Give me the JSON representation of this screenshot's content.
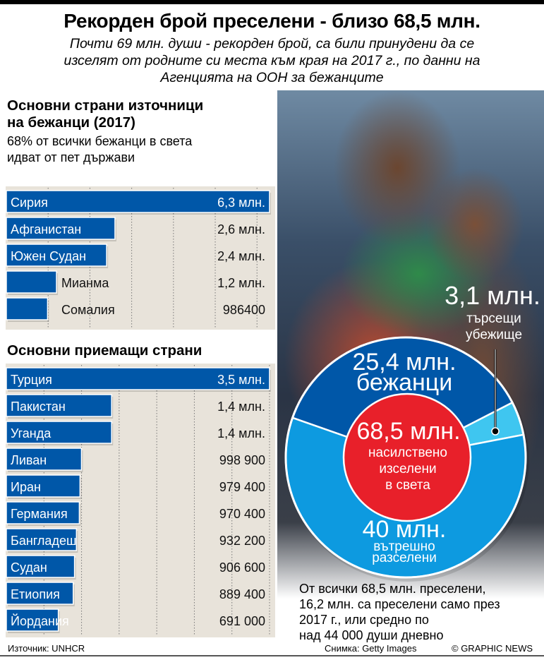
{
  "header": {
    "title": "Рекорден брой преселени - близо 68,5 млн.",
    "subtitle_lines": [
      "Почти 69 млн. души - рекорден брой, са били принудени да се",
      "изселят от родните си места към края на 2017 г., по данни на",
      "Агенцията на ООН за бежанците"
    ]
  },
  "colors": {
    "bar": "#0057a8",
    "panel": "#e8e3da",
    "refugees": "#0057a8",
    "idp": "#0d9ae0",
    "asylum": "#3fc6f0",
    "center": "#e8202a"
  },
  "chart_data": [
    {
      "type": "bar",
      "orientation": "horizontal",
      "title_lines": [
        "Основни страни източници",
        "на бежанци (2017)"
      ],
      "subtitle_lines": [
        "68% от всички бежанци в света",
        "идват от пет държави"
      ],
      "categories": [
        "Сирия",
        "Афганистан",
        "Южен Судан",
        "Мианма",
        "Сомалия"
      ],
      "values": [
        6300000,
        2600000,
        2400000,
        1200000,
        986400
      ],
      "value_labels": [
        "6,3 млн.",
        "2,6 млн.",
        "2,4 млн.",
        "1,2 млн.",
        "986400"
      ],
      "xlim": [
        0,
        6300000
      ],
      "grid": true
    },
    {
      "type": "bar",
      "orientation": "horizontal",
      "title": "Основни приемащи страни",
      "categories": [
        "Турция",
        "Пакистан",
        "Уганда",
        "Ливан",
        "Иран",
        "Германия",
        "Бангладеш",
        "Судан",
        "Етиопия",
        "Йордания"
      ],
      "values": [
        3500000,
        1400000,
        1400000,
        998900,
        979400,
        970400,
        932200,
        906600,
        889400,
        691000
      ],
      "value_labels": [
        "3,5 млн.",
        "1,4 млн.",
        "1,4 млн.",
        "998 900",
        "979 400",
        "970 400",
        "932 200",
        "906 600",
        "889 400",
        "691 000"
      ],
      "xlim": [
        0,
        3500000
      ],
      "grid": true
    },
    {
      "type": "pie",
      "center_label": {
        "value": "68,5 млн.",
        "lines": [
          "насилствено",
          "изселени",
          "в света"
        ]
      },
      "slices": [
        {
          "value": 25.4,
          "label_value": "25,4 млн.",
          "label": "бежанци",
          "color": "#0057a8"
        },
        {
          "value": 3.1,
          "label_value": "3,1 млн.",
          "label_lines": [
            "търсещи",
            "убежище"
          ],
          "color": "#3fc6f0"
        },
        {
          "value": 40,
          "label_value": "40 млн.",
          "label_lines": [
            "вътрешно",
            "разселени"
          ],
          "color": "#0d9ae0"
        }
      ]
    }
  ],
  "note_lines": [
    "От всички 68,5 млн. преселени,",
    "16,2 млн. са преселени само през",
    "2017 г., или средно по",
    "над 44 000 души дневно"
  ],
  "footer": {
    "source": "Източник:  UNHCR",
    "photo_credit": "Снимка:  Getty Images",
    "copyright": "© GRAPHIC NEWS"
  }
}
